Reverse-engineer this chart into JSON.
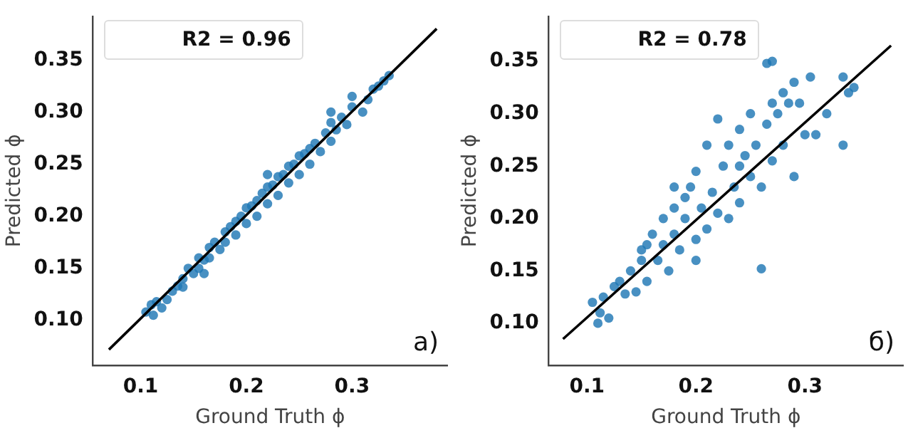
{
  "chart_data": [
    {
      "type": "scatter",
      "xlabel": "Ground Truth ϕ",
      "ylabel": "Predicted ϕ",
      "annotations": [
        "R2 = 0.96",
        "a)"
      ],
      "marker": "circle",
      "xlim": [
        0.055,
        0.39
      ],
      "ylim": [
        0.057,
        0.392
      ],
      "xticks": [
        0.1,
        0.2,
        0.3
      ],
      "yticks": [
        {
          "value": 0.1,
          "label": "0.10"
        },
        {
          "value": 0.15,
          "label": "0.15"
        },
        {
          "value": 0.2,
          "label": "0.20"
        },
        {
          "value": 0.25,
          "label": "0.25"
        },
        {
          "value": 0.3,
          "label": "0.30"
        },
        {
          "value": 0.35,
          "label": "0.35"
        }
      ],
      "series": [
        {
          "color": "#1f77b4",
          "x": [
            0.105,
            0.11,
            0.112,
            0.115,
            0.12,
            0.125,
            0.13,
            0.135,
            0.14,
            0.14,
            0.145,
            0.15,
            0.155,
            0.155,
            0.16,
            0.165,
            0.165,
            0.17,
            0.175,
            0.18,
            0.18,
            0.185,
            0.19,
            0.19,
            0.195,
            0.2,
            0.2,
            0.205,
            0.21,
            0.21,
            0.215,
            0.22,
            0.22,
            0.225,
            0.23,
            0.23,
            0.235,
            0.24,
            0.24,
            0.245,
            0.25,
            0.25,
            0.255,
            0.26,
            0.26,
            0.265,
            0.27,
            0.275,
            0.28,
            0.28,
            0.285,
            0.29,
            0.295,
            0.3,
            0.31,
            0.315,
            0.32,
            0.325,
            0.33,
            0.335,
            0.28,
            0.22,
            0.16,
            0.3
          ],
          "values": [
            0.108,
            0.115,
            0.105,
            0.118,
            0.112,
            0.12,
            0.128,
            0.133,
            0.14,
            0.132,
            0.15,
            0.145,
            0.16,
            0.15,
            0.158,
            0.17,
            0.16,
            0.175,
            0.168,
            0.185,
            0.175,
            0.19,
            0.182,
            0.195,
            0.2,
            0.193,
            0.208,
            0.21,
            0.2,
            0.215,
            0.222,
            0.212,
            0.228,
            0.23,
            0.22,
            0.238,
            0.24,
            0.232,
            0.248,
            0.25,
            0.24,
            0.258,
            0.26,
            0.25,
            0.265,
            0.27,
            0.262,
            0.28,
            0.272,
            0.29,
            0.283,
            0.295,
            0.288,
            0.305,
            0.3,
            0.312,
            0.322,
            0.325,
            0.33,
            0.335,
            0.3,
            0.24,
            0.145,
            0.315
          ]
        },
        {
          "type": "line",
          "color": "#000000",
          "marker": "none",
          "x": [
            0.07,
            0.38
          ],
          "values": [
            0.072,
            0.38
          ]
        }
      ]
    },
    {
      "type": "scatter",
      "xlabel": "Ground Truth ϕ",
      "ylabel": "Predicted ϕ",
      "annotations": [
        "R2 = 0.78",
        "б)"
      ],
      "marker": "circle",
      "xlim": [
        0.065,
        0.39
      ],
      "ylim": [
        0.06,
        0.393
      ],
      "xticks": [
        0.1,
        0.2,
        0.3
      ],
      "yticks": [
        {
          "value": 0.1,
          "label": "0.10"
        },
        {
          "value": 0.15,
          "label": "0.15"
        },
        {
          "value": 0.2,
          "label": "0.20"
        },
        {
          "value": 0.25,
          "label": "0.25"
        },
        {
          "value": 0.3,
          "label": "0.30"
        },
        {
          "value": 0.35,
          "label": "0.35"
        }
      ],
      "series": [
        {
          "color": "#1f77b4",
          "x": [
            0.105,
            0.11,
            0.112,
            0.115,
            0.12,
            0.125,
            0.13,
            0.135,
            0.14,
            0.145,
            0.15,
            0.15,
            0.155,
            0.155,
            0.16,
            0.165,
            0.17,
            0.17,
            0.175,
            0.18,
            0.18,
            0.185,
            0.19,
            0.19,
            0.195,
            0.2,
            0.2,
            0.205,
            0.21,
            0.21,
            0.215,
            0.22,
            0.22,
            0.225,
            0.23,
            0.23,
            0.235,
            0.24,
            0.24,
            0.245,
            0.25,
            0.25,
            0.255,
            0.26,
            0.26,
            0.265,
            0.265,
            0.27,
            0.27,
            0.27,
            0.275,
            0.28,
            0.28,
            0.285,
            0.29,
            0.29,
            0.295,
            0.3,
            0.305,
            0.31,
            0.32,
            0.335,
            0.335,
            0.34,
            0.345,
            0.2,
            0.18,
            0.24
          ],
          "values": [
            0.12,
            0.1,
            0.11,
            0.125,
            0.105,
            0.135,
            0.14,
            0.128,
            0.15,
            0.13,
            0.17,
            0.16,
            0.175,
            0.14,
            0.185,
            0.16,
            0.2,
            0.175,
            0.15,
            0.21,
            0.185,
            0.17,
            0.22,
            0.2,
            0.23,
            0.18,
            0.245,
            0.21,
            0.27,
            0.19,
            0.225,
            0.295,
            0.205,
            0.25,
            0.2,
            0.27,
            0.23,
            0.285,
            0.215,
            0.26,
            0.3,
            0.24,
            0.27,
            0.152,
            0.23,
            0.348,
            0.29,
            0.35,
            0.31,
            0.255,
            0.3,
            0.32,
            0.27,
            0.31,
            0.33,
            0.24,
            0.31,
            0.28,
            0.335,
            0.28,
            0.3,
            0.27,
            0.335,
            0.32,
            0.325,
            0.16,
            0.23,
            0.25
          ]
        },
        {
          "type": "line",
          "color": "#000000",
          "marker": "none",
          "x": [
            0.078,
            0.379
          ],
          "values": [
            0.085,
            0.365
          ]
        }
      ]
    }
  ]
}
